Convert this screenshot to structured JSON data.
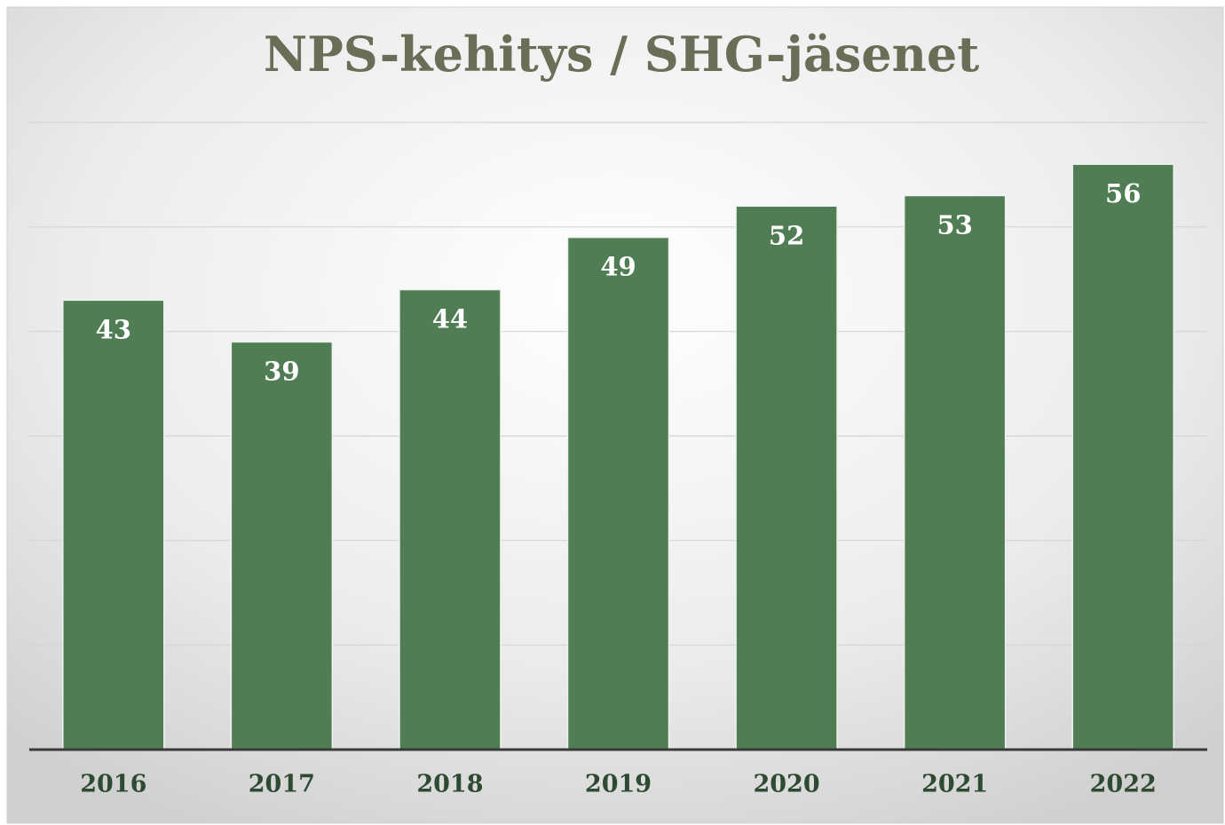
{
  "chart_data": {
    "type": "bar",
    "title": "NPS-kehitys / SHG-jäsenet",
    "categories": [
      "2016",
      "2017",
      "2018",
      "2019",
      "2020",
      "2021",
      "2022"
    ],
    "values": [
      43,
      39,
      44,
      49,
      52,
      53,
      56
    ],
    "color": "#507d54",
    "ylim": [
      0,
      60
    ],
    "yticks": [
      0,
      10,
      20,
      30,
      40,
      50,
      60
    ],
    "grid": true
  }
}
